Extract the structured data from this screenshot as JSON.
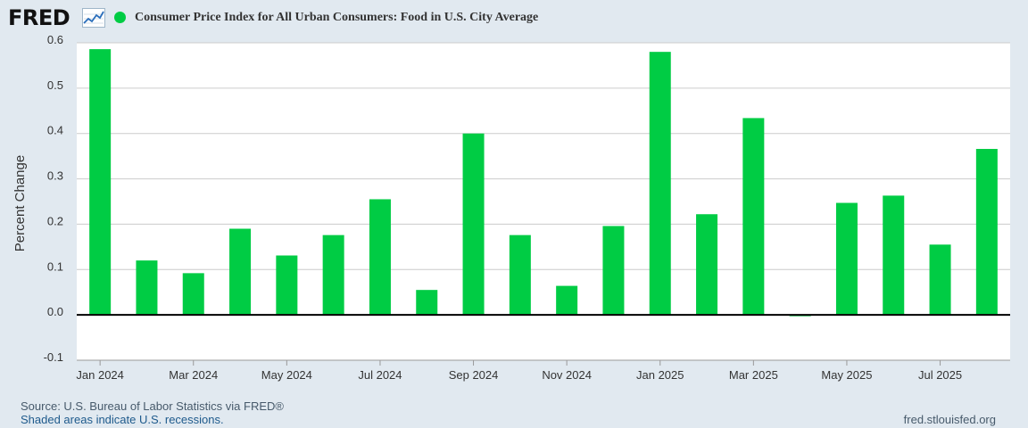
{
  "header": {
    "logo_text": "FRED",
    "title": "Consumer Price Index for All Urban Consumers: Food in U.S. City Average"
  },
  "colors": {
    "series": "#00cc44",
    "background": "#e1e9f0",
    "plot_background": "#ffffff",
    "grid": "#cccccc",
    "zero_line": "#000000"
  },
  "footer": {
    "source": "Source: U.S. Bureau of Labor Statistics via FRED®",
    "recession_note": "Shaded areas indicate U.S. recessions.",
    "site": "fred.stlouisfed.org"
  },
  "chart_data": {
    "type": "bar",
    "title": "Consumer Price Index for All Urban Consumers: Food in U.S. City Average",
    "xlabel": "",
    "ylabel": "Percent Change",
    "ylim": [
      -0.1,
      0.6
    ],
    "yticks": [
      -0.1,
      0.0,
      0.1,
      0.2,
      0.3,
      0.4,
      0.5,
      0.6
    ],
    "ytick_labels": [
      "-0.1",
      "0.0",
      "0.1",
      "0.2",
      "0.3",
      "0.4",
      "0.5",
      "0.6"
    ],
    "grid": true,
    "categories": [
      "Jan 2024",
      "Feb 2024",
      "Mar 2024",
      "Apr 2024",
      "May 2024",
      "Jun 2024",
      "Jul 2024",
      "Aug 2024",
      "Sep 2024",
      "Oct 2024",
      "Nov 2024",
      "Dec 2024",
      "Jan 2025",
      "Feb 2025",
      "Mar 2025",
      "Apr 2025",
      "May 2025",
      "Jun 2025",
      "Jul 2025",
      "Aug 2025"
    ],
    "xtick_labels": [
      "Jan 2024",
      "Mar 2024",
      "May 2024",
      "Jul 2024",
      "Sep 2024",
      "Nov 2024",
      "Jan 2025",
      "Mar 2025",
      "May 2025",
      "Jul 2025"
    ],
    "series": [
      {
        "name": "Consumer Price Index for All Urban Consumers: Food in U.S. City Average",
        "values": [
          0.586,
          0.12,
          0.092,
          0.19,
          0.131,
          0.176,
          0.255,
          0.055,
          0.4,
          0.176,
          0.064,
          0.196,
          0.58,
          0.222,
          0.434,
          -0.002,
          0.247,
          0.263,
          0.155,
          0.366
        ]
      }
    ]
  }
}
